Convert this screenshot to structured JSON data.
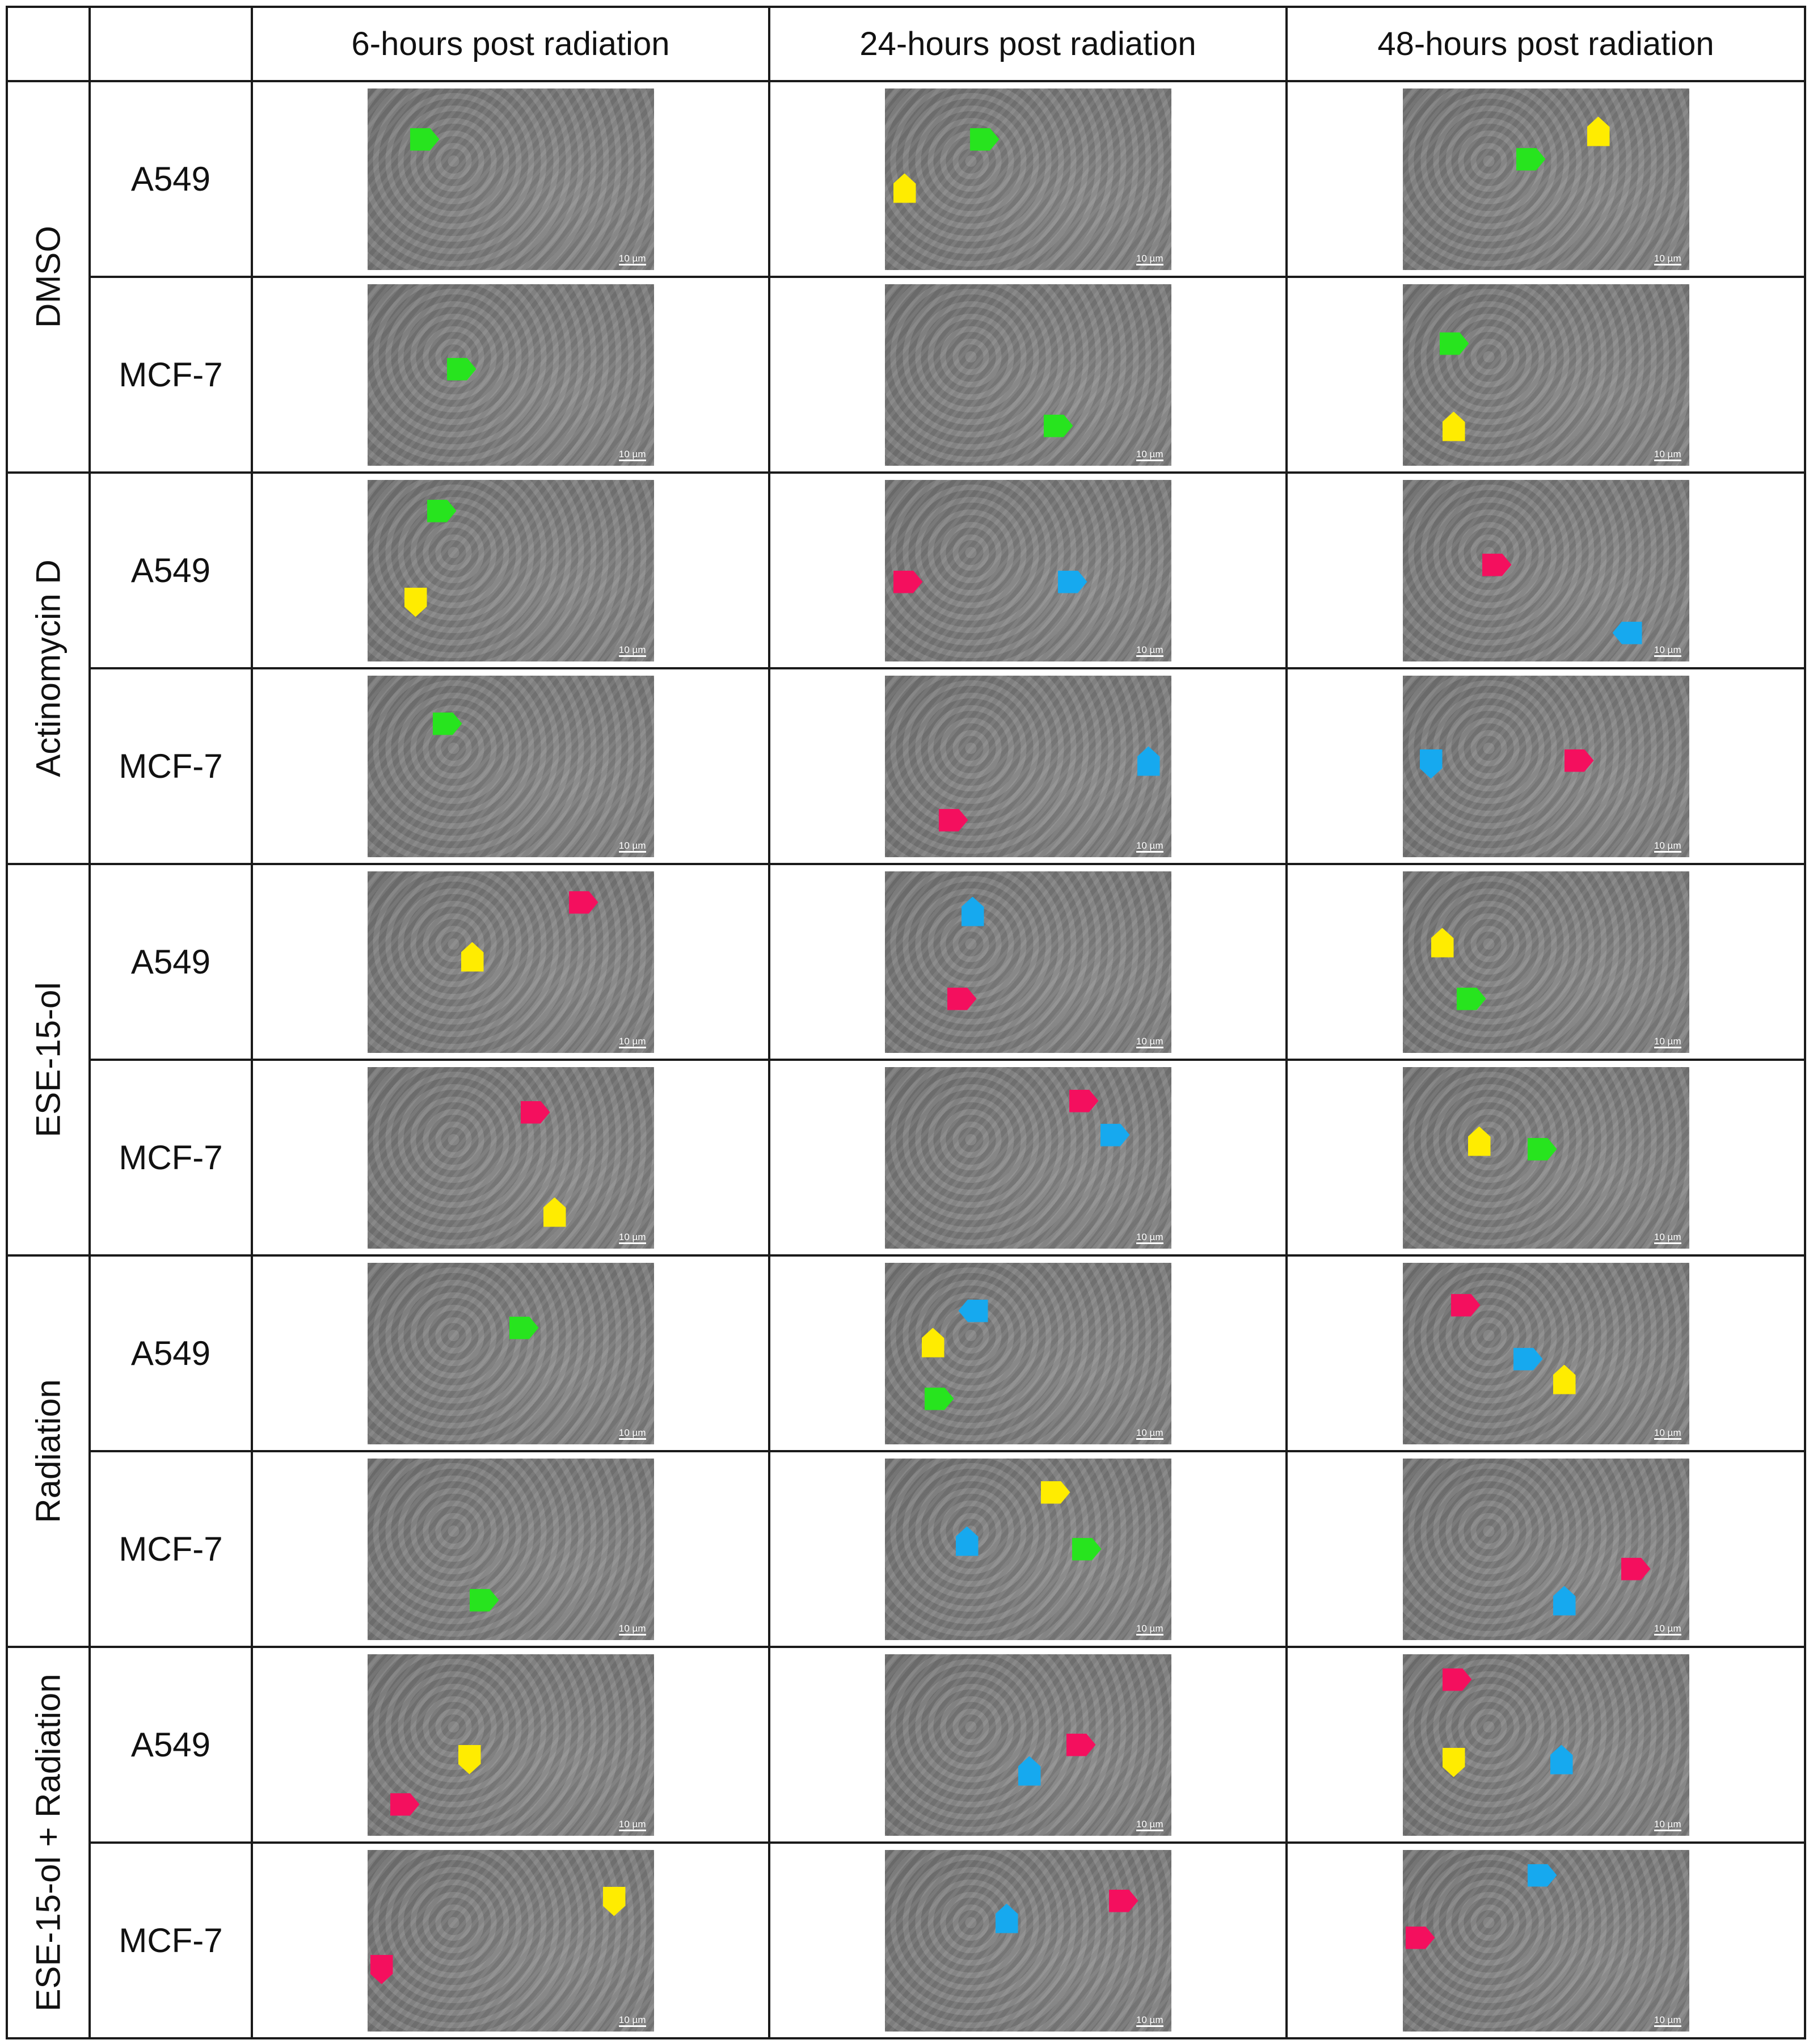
{
  "headers": {
    "col1": "6-hours post radiation",
    "col2": "24-hours post radiation",
    "col3": "48-hours post radiation"
  },
  "groups": {
    "dmso": "DMSO",
    "actinomycin": "Actinomycin D",
    "ese": "ESE-15-ol",
    "radiation": "Radiation",
    "ese_radiation": "ESE-15-ol + Radiation"
  },
  "cell_lines": {
    "a549": "A549",
    "mcf7": "MCF-7"
  },
  "scale_bar": "10 µm",
  "marker_colors": {
    "green": "#27e41e",
    "yellow": "#ffec00",
    "red": "#f40f5e",
    "blue": "#16a9ef"
  }
}
